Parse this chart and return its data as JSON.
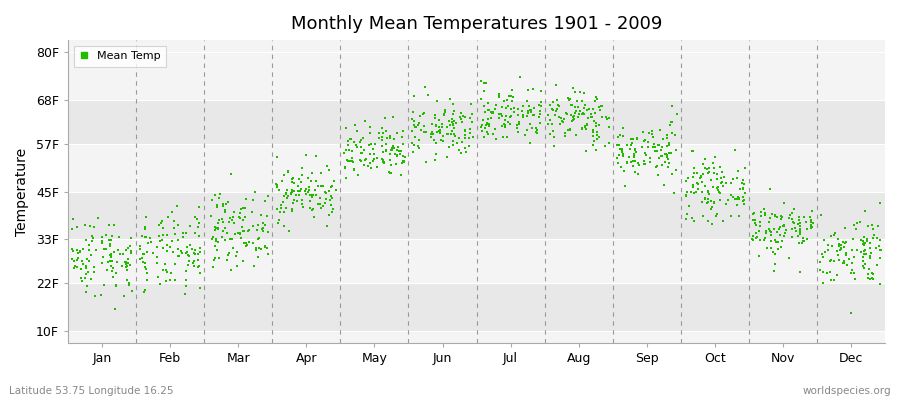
{
  "title": "Monthly Mean Temperatures 1901 - 2009",
  "ylabel": "Temperature",
  "xlabel_labels": [
    "Jan",
    "Feb",
    "Mar",
    "Apr",
    "May",
    "Jun",
    "Jul",
    "Aug",
    "Sep",
    "Oct",
    "Nov",
    "Dec"
  ],
  "ytick_labels": [
    "10F",
    "22F",
    "33F",
    "45F",
    "57F",
    "68F",
    "80F"
  ],
  "ytick_values": [
    10,
    22,
    33,
    45,
    57,
    68,
    80
  ],
  "ylim": [
    7,
    83
  ],
  "dot_color": "#22bb00",
  "dot_size": 3,
  "band_colors": [
    "#e8e8e8",
    "#f4f4f4"
  ],
  "dashed_line_color": "#999999",
  "subtitle_left": "Latitude 53.75 Longitude 16.25",
  "subtitle_right": "worldspecies.org",
  "legend_label": "Mean Temp",
  "years": 109,
  "monthly_means_C": [
    -1.8,
    -1.5,
    2.0,
    7.0,
    12.5,
    15.8,
    18.0,
    17.5,
    12.8,
    7.5,
    2.0,
    -1.0
  ],
  "monthly_stds_C": [
    2.8,
    2.8,
    2.5,
    2.0,
    2.0,
    2.0,
    2.0,
    2.0,
    2.0,
    2.0,
    2.0,
    2.5
  ],
  "seed": 42,
  "fig_width": 9.0,
  "fig_height": 4.0,
  "dpi": 100
}
